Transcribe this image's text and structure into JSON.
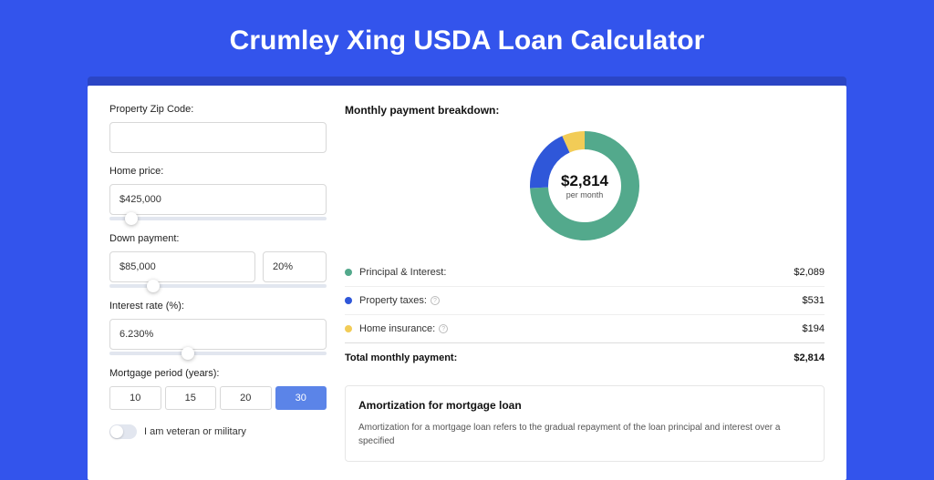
{
  "page": {
    "title": "Crumley Xing USDA Loan Calculator",
    "background_color": "#3354ec",
    "shadow_color": "#2b45c5"
  },
  "form": {
    "zip": {
      "label": "Property Zip Code:",
      "value": ""
    },
    "home_price": {
      "label": "Home price:",
      "value": "$425,000",
      "slider_pct": 10
    },
    "down_payment": {
      "label": "Down payment:",
      "amount": "$85,000",
      "percent": "20%",
      "slider_pct": 20
    },
    "interest_rate": {
      "label": "Interest rate (%):",
      "value": "6.230%",
      "slider_pct": 36
    },
    "mortgage_period": {
      "label": "Mortgage period (years):",
      "options": [
        "10",
        "15",
        "20",
        "30"
      ],
      "selected": "30"
    },
    "veteran": {
      "label": "I am veteran or military",
      "checked": false
    }
  },
  "breakdown": {
    "title": "Monthly payment breakdown:",
    "center_amount": "$2,814",
    "center_sub": "per month",
    "donut": {
      "radius": 50,
      "stroke_width": 20,
      "segments": [
        {
          "label": "Principal & Interest:",
          "value": "$2,089",
          "color": "#53a98c",
          "pct": 74.2,
          "has_info": false
        },
        {
          "label": "Property taxes:",
          "value": "$531",
          "color": "#2f57d9",
          "pct": 18.9,
          "has_info": true
        },
        {
          "label": "Home insurance:",
          "value": "$194",
          "color": "#f2cc57",
          "pct": 6.9,
          "has_info": true
        }
      ]
    },
    "total_label": "Total monthly payment:",
    "total_value": "$2,814"
  },
  "amortization": {
    "title": "Amortization for mortgage loan",
    "text": "Amortization for a mortgage loan refers to the gradual repayment of the loan principal and interest over a specified"
  }
}
